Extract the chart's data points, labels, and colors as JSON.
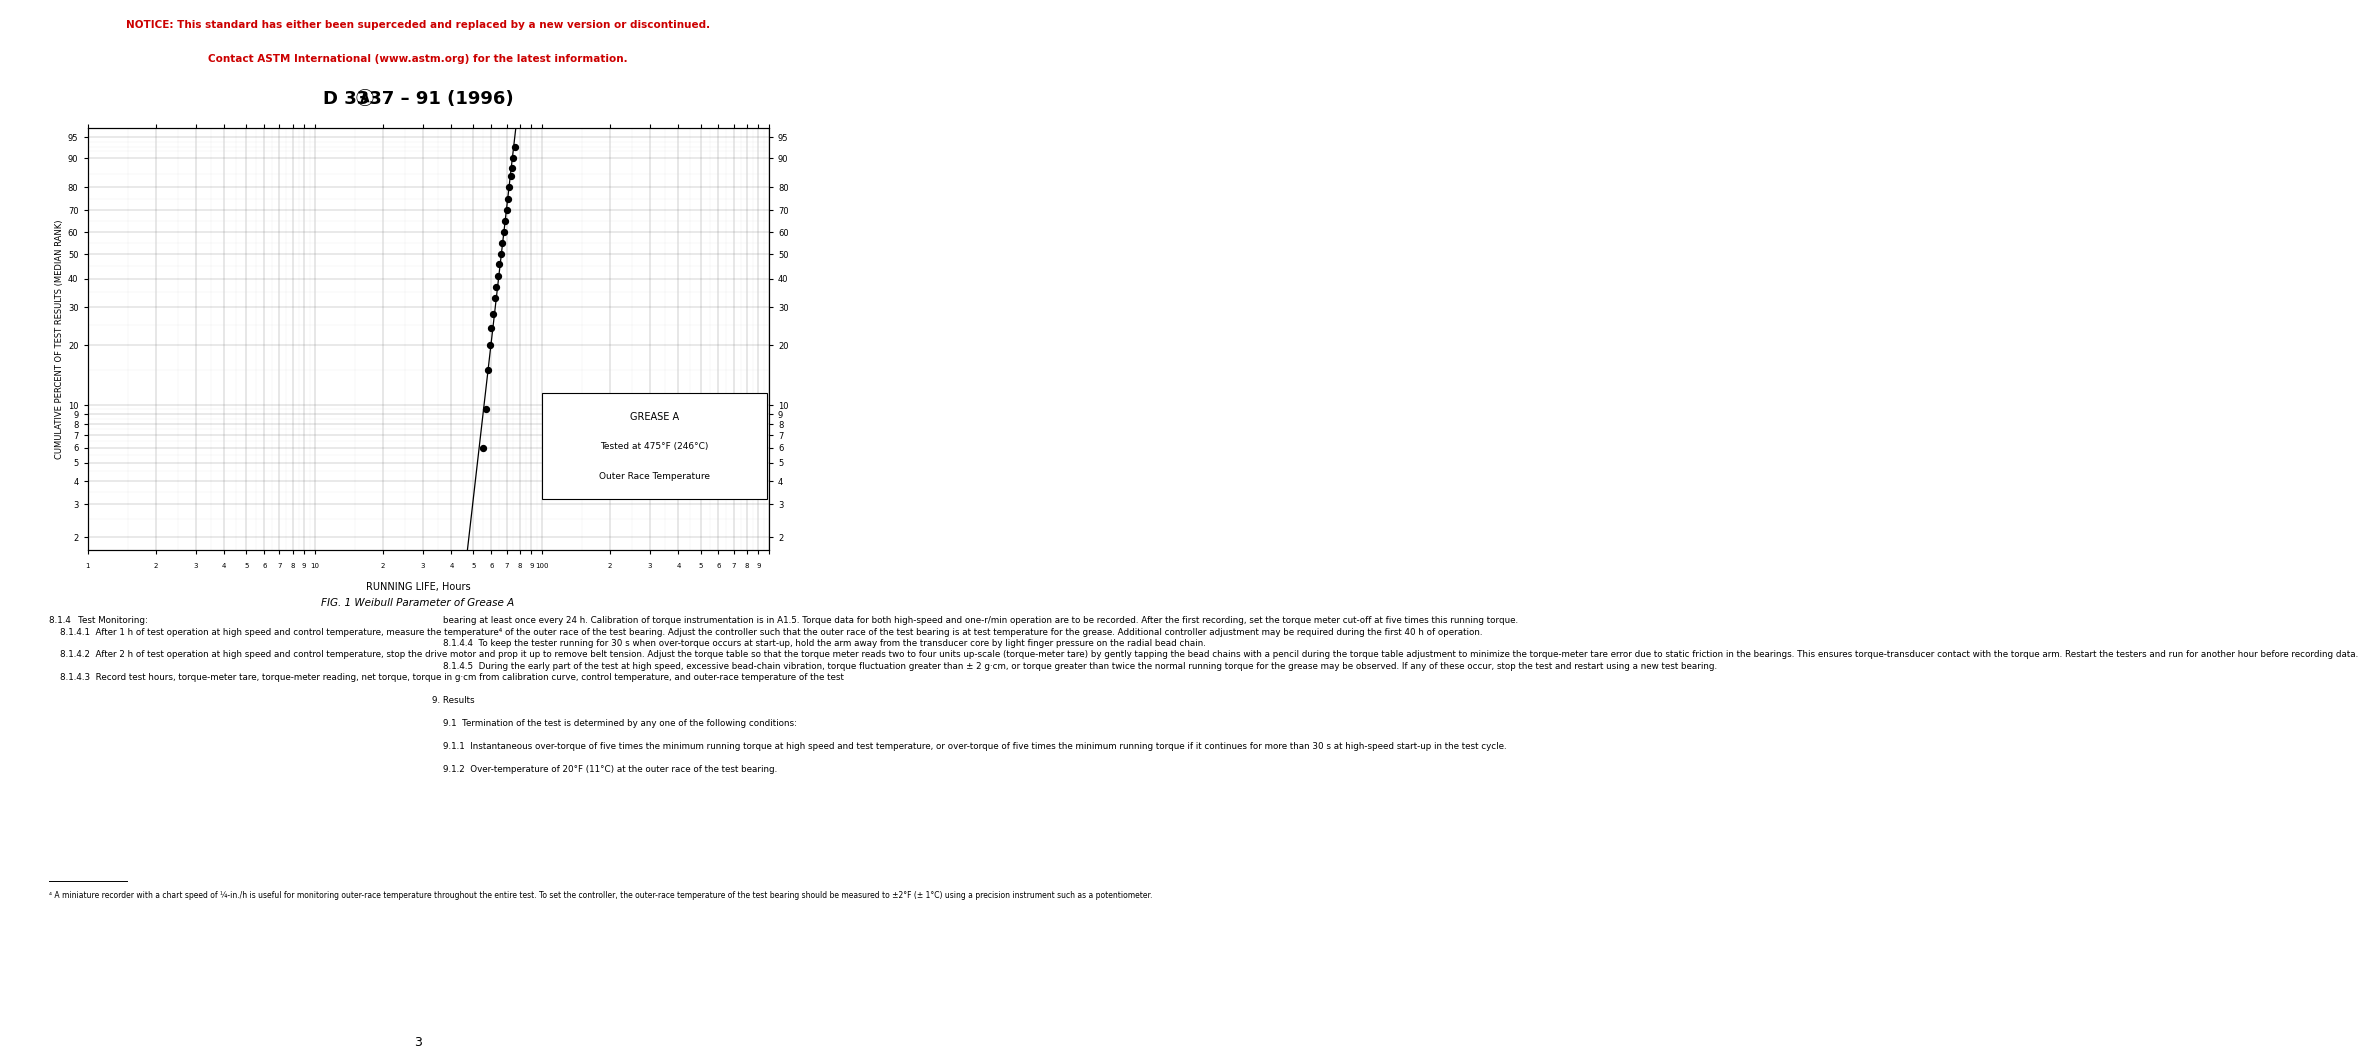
{
  "notice_line1": "NOTICE: This standard has either been superceded and replaced by a new version or discontinued.",
  "notice_line2": "Contact ASTM International (www.astm.org) for the latest information.",
  "notice_color": "#cc0000",
  "title": "D 3337 – 91 (1996)",
  "chart_title": "FIG. 1 Weibull Parameter of Grease A",
  "xlabel": "RUNNING LIFE, Hours",
  "ylabel": "CUMULATIVE PERCENT OF TEST RESULTS (MEDIAN RANK)",
  "legend_text": [
    "GREASE A",
    "Tested at 475°F (246°C)",
    "Outer Race Temperature"
  ],
  "page_number": "3",
  "data_points_x": [
    55,
    57,
    58,
    59,
    60,
    61,
    62,
    63,
    64,
    65,
    66,
    67,
    68,
    69,
    70,
    71,
    72,
    73,
    74,
    75,
    76
  ],
  "data_points_y": [
    6.0,
    9.5,
    15.0,
    20.0,
    24.0,
    28.0,
    33.0,
    37.0,
    41.0,
    46.0,
    50.0,
    55.0,
    60.0,
    65.0,
    70.0,
    75.0,
    80.0,
    84.0,
    87.0,
    90.0,
    93.0
  ],
  "body_text_left": [
    {
      "text": "8.1.4  ",
      "style": "normal",
      "rest": "Test Monitoring",
      "rest_style": "italic",
      "suffix": ":"
    },
    {
      "text": "8.1.4.1  After 1 h of test operation at high speed and control temperature, measure the temperature⁴ of the outer race of the test bearing. Adjust the controller such that the outer race of the test bearing is at test temperature for the grease. Additional controller adjustment may be required during the first 40 h of operation.",
      "style": "normal"
    },
    {
      "text": "8.1.4.2  After 2 h of test operation at high speed and control temperature, stop the drive motor and prop it up to remove belt tension. Adjust the torque table so that the torque meter reads two to four units up-scale (torque-meter tare) by gently tapping the bead chains with a pencil during the torque table adjustment to minimize the torque-meter tare error due to static friction in the bearings. This ensures torque-transducer contact with the torque arm. Restart the testers and run for another hour before recording data.",
      "style": "normal"
    },
    {
      "text": "8.1.4.3  Record test hours, torque-meter tare, torque-meter reading, net torque, torque in g·cm from calibration curve, control temperature, and outer-race temperature of the test",
      "style": "normal"
    }
  ],
  "body_text_right": [
    {
      "text": "bearing at least once every 24 h. Calibration of torque instrumentation is in A1.5. Torque data for both high-speed and one-r/min operation are to be recorded. After the first recording, set the torque meter cut-off at five times this running torque.",
      "style": "normal"
    },
    {
      "text": "8.1.4.4  To keep the tester running for 30 s when over-torque occurs at start-up, hold the arm away from the transducer core by light finger pressure on the radial bead chain.",
      "style": "normal"
    },
    {
      "text": "8.1.4.5  During the early part of the test at high speed, excessive bead-chain vibration, torque fluctuation greater than ± 2 g·cm, or torque greater than twice the normal running torque for the grease may be observed. If any of these occur, stop the test and restart using a new test bearing.",
      "style": "normal"
    },
    {
      "text": "9. Results",
      "style": "bold_section"
    },
    {
      "text": "9.1  Termination of the test is determined by any one of the following conditions:",
      "style": "normal"
    },
    {
      "text": "9.1.1  Instantaneous over-torque of five times the minimum running torque at high speed and test temperature, or over-torque of five times the minimum running torque if it continues for more than 30 s at high-speed start-up in the test cycle.",
      "style": "normal"
    },
    {
      "text": "9.1.2  Over-temperature of 20°F (11°C) at the outer race of the test bearing.",
      "style": "normal"
    }
  ],
  "footnote": "⁴ A miniature recorder with a chart speed of ¼-in./h is useful for monitoring outer-race temperature throughout the entire test. To set the controller, the outer-race temperature of the test bearing should be measured to ±2°F (± 1°C) using a precision instrument such as a potentiometer.",
  "y_ticks_pct": [
    2,
    3,
    4,
    5,
    6,
    7,
    8,
    9,
    10,
    20,
    30,
    40,
    50,
    60,
    70,
    80,
    90,
    95
  ]
}
